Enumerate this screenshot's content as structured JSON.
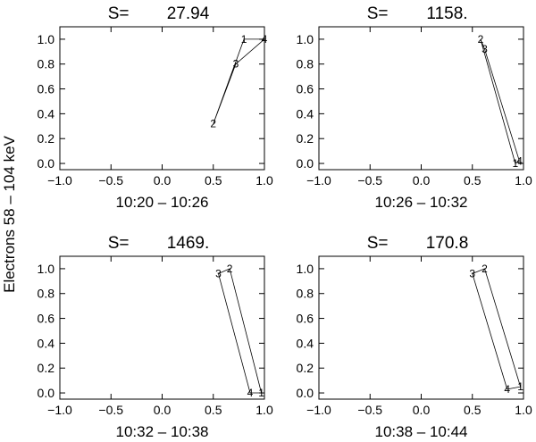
{
  "figure": {
    "ylabel": "Electrons 58 – 104 keV"
  },
  "chart_data": [
    {
      "type": "line",
      "title": "S=",
      "s_value": "27.94",
      "xlabel": "10:20 – 10:26",
      "xlim": [
        -1.0,
        1.0
      ],
      "ylim": [
        -0.05,
        1.1
      ],
      "xticks": [
        "−1.0",
        "−0.5",
        "0.0",
        "0.5",
        "1.0"
      ],
      "yticks": [
        "0.0",
        "0.2",
        "0.4",
        "0.6",
        "0.8",
        "1.0"
      ],
      "series": [
        {
          "points": [
            {
              "x": 0.8,
              "y": 1.0,
              "label": "1"
            },
            {
              "x": 0.5,
              "y": 0.32,
              "label": "2"
            },
            {
              "x": 0.72,
              "y": 0.8,
              "label": "3"
            },
            {
              "x": 1.0,
              "y": 1.0,
              "label": "4"
            }
          ]
        }
      ]
    },
    {
      "type": "line",
      "title": "S=",
      "s_value": "1158.",
      "xlabel": "10:26 – 10:32",
      "xlim": [
        -1.0,
        1.0
      ],
      "ylim": [
        -0.05,
        1.1
      ],
      "xticks": [
        "−1.0",
        "−0.5",
        "0.0",
        "0.5",
        "1.0"
      ],
      "yticks": [
        "0.0",
        "0.2",
        "0.4",
        "0.6",
        "0.8",
        "1.0"
      ],
      "series": [
        {
          "points": [
            {
              "x": 0.92,
              "y": 0.0,
              "label": "1"
            },
            {
              "x": 0.58,
              "y": 1.0,
              "label": "2"
            },
            {
              "x": 0.62,
              "y": 0.92,
              "label": "3"
            },
            {
              "x": 0.96,
              "y": 0.02,
              "label": "4"
            }
          ]
        }
      ]
    },
    {
      "type": "line",
      "title": "S=",
      "s_value": "1469.",
      "xlabel": "10:32 – 10:38",
      "xlim": [
        -1.0,
        1.0
      ],
      "ylim": [
        -0.05,
        1.1
      ],
      "xticks": [
        "−1.0",
        "−0.5",
        "0.0",
        "0.5",
        "1.0"
      ],
      "yticks": [
        "0.0",
        "0.2",
        "0.4",
        "0.6",
        "0.8",
        "1.0"
      ],
      "series": [
        {
          "points": [
            {
              "x": 0.97,
              "y": 0.0,
              "label": "1"
            },
            {
              "x": 0.66,
              "y": 1.0,
              "label": "2"
            },
            {
              "x": 0.55,
              "y": 0.96,
              "label": "3"
            },
            {
              "x": 0.86,
              "y": 0.0,
              "label": "4"
            }
          ]
        }
      ]
    },
    {
      "type": "line",
      "title": "S=",
      "s_value": "170.8",
      "xlabel": "10:38 – 10:44",
      "xlim": [
        -1.0,
        1.0
      ],
      "ylim": [
        -0.05,
        1.1
      ],
      "xticks": [
        "−1.0",
        "−0.5",
        "0.0",
        "0.5",
        "1.0"
      ],
      "yticks": [
        "0.0",
        "0.2",
        "0.4",
        "0.6",
        "0.8",
        "1.0"
      ],
      "series": [
        {
          "points": [
            {
              "x": 0.97,
              "y": 0.05,
              "label": "1"
            },
            {
              "x": 0.62,
              "y": 1.0,
              "label": "2"
            },
            {
              "x": 0.5,
              "y": 0.96,
              "label": "3"
            },
            {
              "x": 0.84,
              "y": 0.03,
              "label": "4"
            }
          ]
        }
      ]
    }
  ]
}
